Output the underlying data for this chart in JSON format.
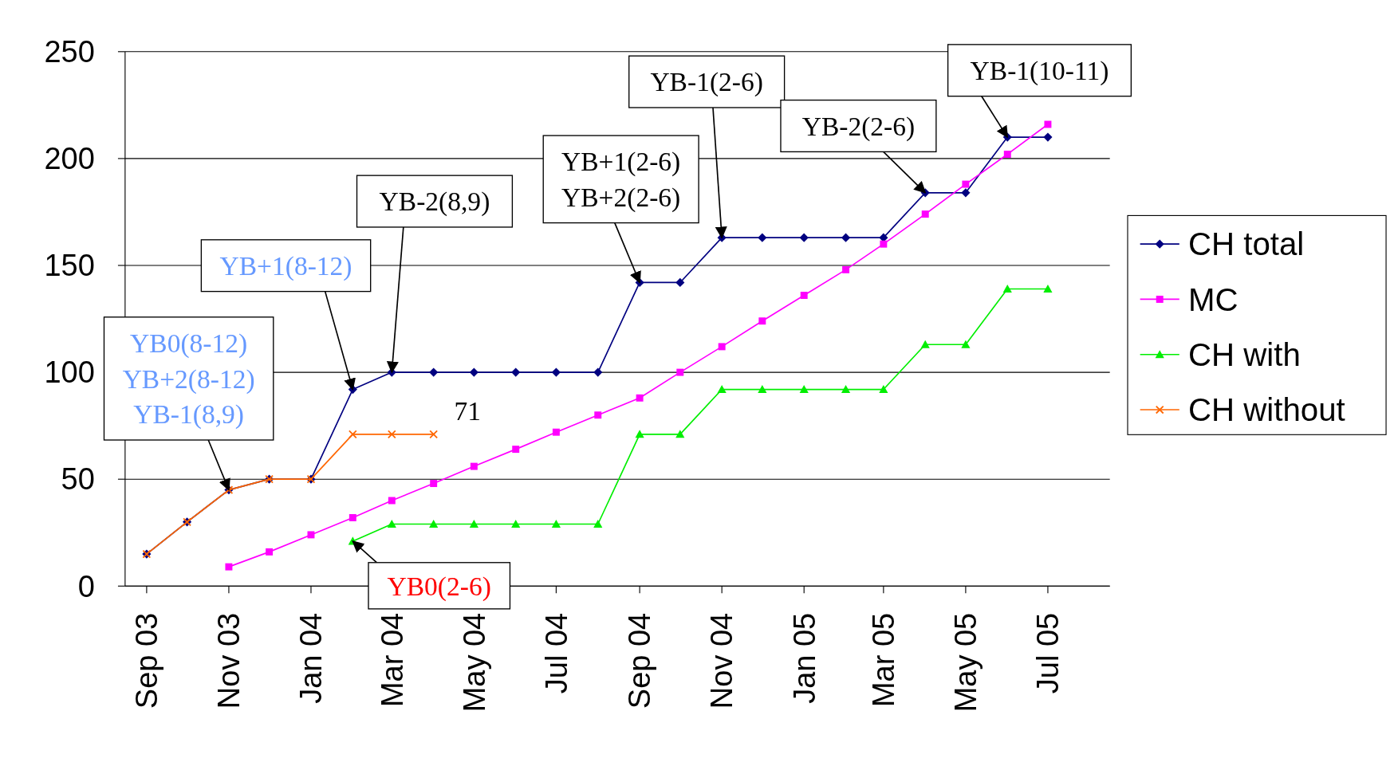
{
  "chart_data": {
    "type": "line",
    "x": [
      "2003-09",
      "2003-10",
      "2003-11",
      "2003-12",
      "2004-01",
      "2004-02",
      "2004-03",
      "2004-04",
      "2004-05",
      "2004-06",
      "2004-07",
      "2004-08",
      "2004-09",
      "2004-10",
      "2004-11",
      "2004-12",
      "2005-01",
      "2005-02",
      "2005-03",
      "2005-04",
      "2005-05",
      "2005-06",
      "2005-07"
    ],
    "xlim": [
      "2003-08-16",
      "2005-08-16"
    ],
    "xticks": [
      {
        "value": "2003-09",
        "label": "Sep 03"
      },
      {
        "value": "2003-11",
        "label": "Nov 03"
      },
      {
        "value": "2004-01",
        "label": "Jan 04"
      },
      {
        "value": "2004-03",
        "label": "Mar 04"
      },
      {
        "value": "2004-05",
        "label": "May 04"
      },
      {
        "value": "2004-07",
        "label": "Jul 04"
      },
      {
        "value": "2004-09",
        "label": "Sep 04"
      },
      {
        "value": "2004-11",
        "label": "Nov 04"
      },
      {
        "value": "2005-01",
        "label": "Jan 05"
      },
      {
        "value": "2005-03",
        "label": "Mar 05"
      },
      {
        "value": "2005-05",
        "label": "May 05"
      },
      {
        "value": "2005-07",
        "label": "Jul 05"
      }
    ],
    "ylim": [
      0,
      250
    ],
    "yticks": [
      0,
      50,
      100,
      150,
      200,
      250
    ],
    "grid": "y",
    "legend": "right",
    "series": [
      {
        "name": "CH total",
        "color": "#000080",
        "marker": "diamond",
        "values": [
          15,
          30,
          45,
          50,
          50,
          92,
          100,
          100,
          100,
          100,
          100,
          100,
          142,
          142,
          163,
          163,
          163,
          163,
          163,
          184,
          184,
          210,
          210
        ]
      },
      {
        "name": "MC",
        "color": "#ff00ff",
        "marker": "square",
        "values": [
          null,
          null,
          9,
          16,
          24,
          32,
          40,
          48,
          56,
          64,
          72,
          80,
          88,
          100,
          112,
          124,
          136,
          148,
          160,
          174,
          188,
          202,
          216
        ]
      },
      {
        "name": "CH with",
        "color": "#00ee00",
        "marker": "triangle",
        "values": [
          null,
          null,
          null,
          null,
          null,
          21,
          29,
          29,
          29,
          29,
          29,
          29,
          71,
          71,
          92,
          92,
          92,
          92,
          92,
          113,
          113,
          139,
          139
        ]
      },
      {
        "name": "CH without",
        "color": "#ff6600",
        "marker": "cross",
        "values": [
          15,
          30,
          45,
          50,
          50,
          71,
          71,
          71,
          null,
          null,
          null,
          null,
          null,
          null,
          null,
          null,
          null,
          null,
          null,
          null,
          null,
          null,
          null
        ],
        "value_labels": [
          null,
          null,
          null,
          null,
          null,
          null,
          null,
          "71",
          null,
          null,
          null,
          null,
          null,
          null,
          null,
          null,
          null,
          null,
          null,
          null,
          null,
          null,
          null
        ]
      }
    ],
    "annotations": [
      {
        "text": "YB0(8-12)\nYB+2(8-12)\nYB-1(8,9)",
        "x": "2003-11",
        "y": 45
      },
      {
        "text": "YB+1(8-12)",
        "x": "2004-02",
        "y": 92
      },
      {
        "text": "YB-2(8,9)",
        "x": "2004-03",
        "y": 100
      },
      {
        "text": "YB+1(2-6)\nYB+2(2-6)",
        "x": "2004-09",
        "y": 142
      },
      {
        "text": "YB-1(2-6)",
        "x": "2004-11",
        "y": 163
      },
      {
        "text": "YB-2(2-6)",
        "x": "2005-04",
        "y": 184
      },
      {
        "text": "YB-1(10-11)",
        "x": "2005-06",
        "y": 210
      },
      {
        "text": "YB0(2-6)",
        "x": "2004-02",
        "y": 21
      }
    ]
  }
}
